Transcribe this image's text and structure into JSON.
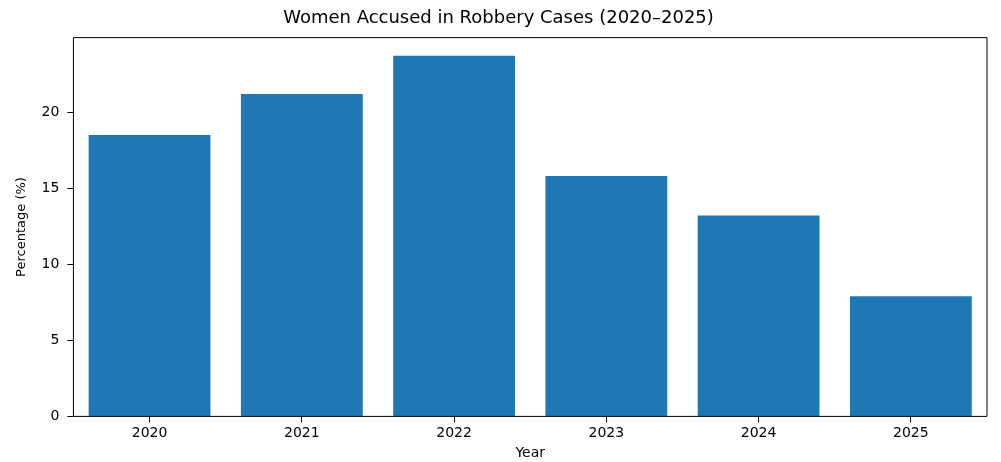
{
  "chart_data": {
    "type": "bar",
    "title": "Women Accused in Robbery Cases (2020–2025)",
    "xlabel": "Year",
    "ylabel": "Percentage (%)",
    "categories": [
      "2020",
      "2021",
      "2022",
      "2023",
      "2024",
      "2025"
    ],
    "values": [
      18.5,
      21.2,
      23.7,
      15.8,
      13.2,
      7.9
    ],
    "color": "#1f77b4",
    "ylim": [
      0,
      24.9
    ],
    "yticks": [
      0,
      5,
      10,
      15,
      20
    ]
  }
}
